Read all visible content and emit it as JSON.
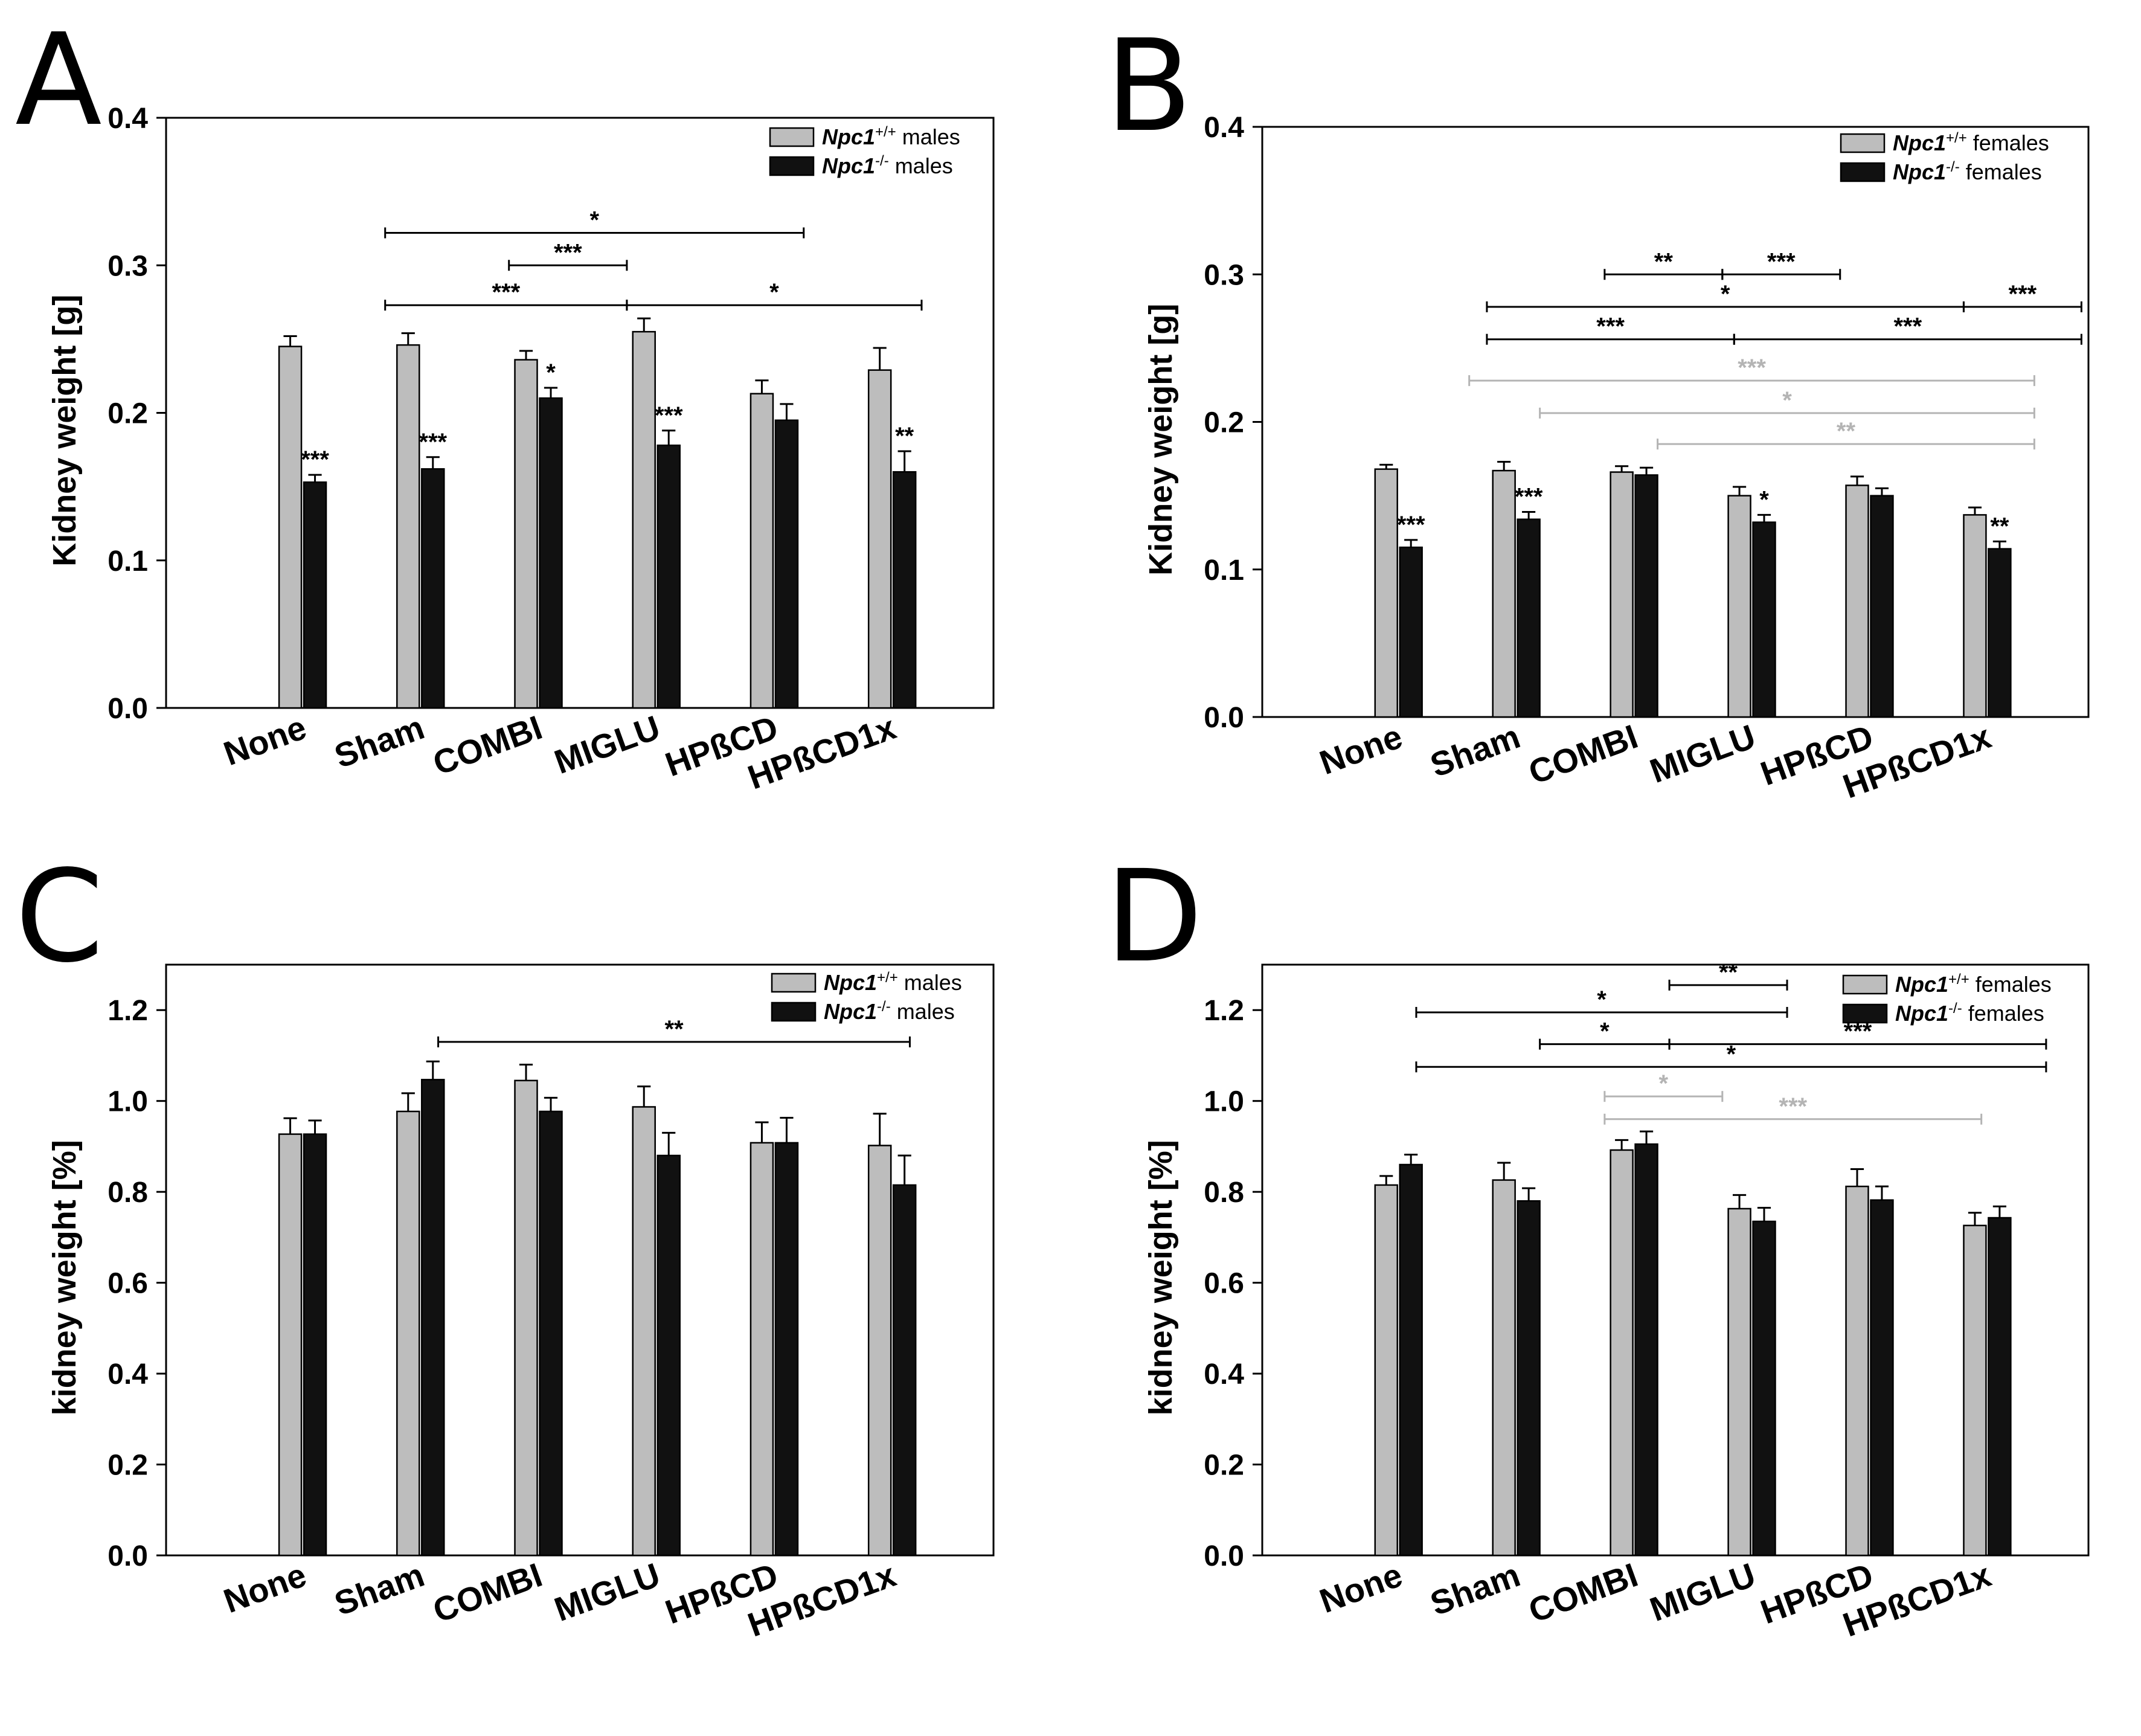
{
  "colors": {
    "wildtype": "#bdbdbd",
    "mutant": "#111111",
    "axis": "#000000",
    "grey_bracket": "#b4b4b4"
  },
  "categories": [
    "None",
    "Sham",
    "COMBI",
    "MIGLU",
    "HPßCD",
    "HPßCD1x"
  ],
  "chart_data": [
    {
      "panel": "A",
      "type": "bar",
      "ylabel": "Kidney weight [g]",
      "ylim": [
        0,
        0.4
      ],
      "yticks": [
        "0.0",
        "0.1",
        "0.2",
        "0.3",
        "0.4"
      ],
      "categories": [
        "None",
        "Sham",
        "COMBI",
        "MIGLU",
        "HPßCD",
        "HPßCD1x"
      ],
      "legend": {
        "placement": "top-right",
        "items": [
          {
            "italic": "Npc1",
            "sup": "+/+",
            "rest": " males",
            "series": 0
          },
          {
            "italic": "Npc1",
            "sup": "-/-",
            "rest": "  males",
            "series": 1
          }
        ]
      },
      "series": [
        {
          "values": [
            0.245,
            0.246,
            0.236,
            0.255,
            0.213,
            0.229
          ],
          "errors": [
            0.007,
            0.008,
            0.006,
            0.009,
            0.009,
            0.015
          ]
        },
        {
          "values": [
            0.153,
            0.162,
            0.21,
            0.178,
            0.195,
            0.16
          ],
          "errors": [
            0.005,
            0.008,
            0.007,
            0.01,
            0.011,
            0.014
          ]
        }
      ],
      "bar_marks": [
        {
          "cat": 0,
          "series": 1,
          "text": "***"
        },
        {
          "cat": 1,
          "series": 1,
          "text": "***"
        },
        {
          "cat": 2,
          "series": 1,
          "text": "*"
        },
        {
          "cat": 3,
          "series": 1,
          "text": "***"
        },
        {
          "cat": 5,
          "series": 1,
          "text": "**"
        }
      ],
      "brackets": [
        {
          "from": 0.7,
          "to": 4.25,
          "y": 0.322,
          "text": "*",
          "color": "black"
        },
        {
          "from": 1.75,
          "to": 2.75,
          "y": 0.3,
          "text": "***",
          "color": "black"
        },
        {
          "from": 0.7,
          "to": 2.75,
          "y": 0.273,
          "text": "***",
          "color": "black"
        },
        {
          "from": 2.75,
          "to": 5.25,
          "y": 0.273,
          "text": "*",
          "color": "black"
        }
      ]
    },
    {
      "panel": "B",
      "type": "bar",
      "ylabel": "Kidney weight [g]",
      "ylim": [
        0,
        0.4
      ],
      "yticks": [
        "0.0",
        "0.1",
        "0.2",
        "0.3",
        "0.4"
      ],
      "categories": [
        "None",
        "Sham",
        "COMBI",
        "MIGLU",
        "HPßCD",
        "HPßCD1x"
      ],
      "legend": {
        "placement": "top-right",
        "items": [
          {
            "italic": "Npc1",
            "sup": "+/+",
            "rest": " females",
            "series": 0
          },
          {
            "italic": "Npc1",
            "sup": "-/-",
            "rest": "  females",
            "series": 1
          }
        ]
      },
      "series": [
        {
          "values": [
            0.168,
            0.167,
            0.166,
            0.15,
            0.157,
            0.137
          ],
          "errors": [
            0.003,
            0.006,
            0.004,
            0.006,
            0.006,
            0.005
          ]
        },
        {
          "values": [
            0.115,
            0.134,
            0.164,
            0.132,
            0.15,
            0.114
          ],
          "errors": [
            0.005,
            0.005,
            0.005,
            0.005,
            0.005,
            0.005
          ]
        }
      ],
      "bar_marks": [
        {
          "cat": 0,
          "series": 1,
          "text": "***"
        },
        {
          "cat": 1,
          "series": 1,
          "text": "***"
        },
        {
          "cat": 3,
          "series": 1,
          "text": "*"
        },
        {
          "cat": 5,
          "series": 1,
          "text": "**"
        }
      ],
      "brackets": [
        {
          "from": 1.75,
          "to": 2.75,
          "y": 0.3,
          "text": "**",
          "color": "black"
        },
        {
          "from": 2.75,
          "to": 3.75,
          "y": 0.3,
          "text": "***",
          "color": "black"
        },
        {
          "from": 0.75,
          "to": 4.8,
          "y": 0.278,
          "text": "*",
          "color": "black"
        },
        {
          "from": 4.8,
          "to": 5.8,
          "y": 0.278,
          "text": "***",
          "color": "black"
        },
        {
          "from": 0.75,
          "to": 2.85,
          "y": 0.256,
          "text": "***",
          "color": "black"
        },
        {
          "from": 2.85,
          "to": 5.8,
          "y": 0.256,
          "text": "***",
          "color": "black"
        },
        {
          "from": 0.6,
          "to": 5.4,
          "y": 0.228,
          "text": "***",
          "color": "grey"
        },
        {
          "from": 1.2,
          "to": 5.4,
          "y": 0.206,
          "text": "*",
          "color": "grey"
        },
        {
          "from": 2.2,
          "to": 5.4,
          "y": 0.185,
          "text": "**",
          "color": "grey"
        }
      ]
    },
    {
      "panel": "C",
      "type": "bar",
      "ylabel": "kidney weight [%]",
      "ylim": [
        0,
        1.3
      ],
      "yticks": [
        "0.0",
        "0.2",
        "0.4",
        "0.6",
        "0.8",
        "1.0",
        "1.2"
      ],
      "categories": [
        "None",
        "Sham",
        "COMBI",
        "MIGLU",
        "HPßCD",
        "HPßCD1x"
      ],
      "legend": {
        "placement": "top-right",
        "items": [
          {
            "italic": "Npc1",
            "sup": "+/+",
            "rest": " males",
            "series": 0
          },
          {
            "italic": "Npc1",
            "sup": "-/-",
            "rest": "  males",
            "series": 1
          }
        ]
      },
      "series": [
        {
          "values": [
            0.927,
            0.977,
            1.045,
            0.987,
            0.908,
            0.902
          ],
          "errors": [
            0.035,
            0.04,
            0.035,
            0.045,
            0.045,
            0.07
          ]
        },
        {
          "values": [
            0.927,
            1.047,
            0.977,
            0.88,
            0.908,
            0.815
          ],
          "errors": [
            0.03,
            0.04,
            0.03,
            0.05,
            0.055,
            0.065
          ]
        }
      ],
      "bar_marks": [],
      "brackets": [
        {
          "from": 1.15,
          "to": 5.15,
          "y": 1.13,
          "text": "**",
          "color": "black"
        }
      ]
    },
    {
      "panel": "D",
      "type": "bar",
      "ylabel": "kidney weight [%]",
      "ylim": [
        0,
        1.3
      ],
      "yticks": [
        "0.0",
        "0.2",
        "0.4",
        "0.6",
        "0.8",
        "1.0",
        "1.2"
      ],
      "categories": [
        "None",
        "Sham",
        "COMBI",
        "MIGLU",
        "HPßCD",
        "HPßCD1x"
      ],
      "legend": {
        "placement": "top-right",
        "items": [
          {
            "italic": "Npc1",
            "sup": "+/+",
            "rest": " females",
            "series": 0
          },
          {
            "italic": "Npc1",
            "sup": "-/-",
            "rest": "  females",
            "series": 1
          }
        ]
      },
      "series": [
        {
          "values": [
            0.815,
            0.826,
            0.892,
            0.763,
            0.812,
            0.726
          ],
          "errors": [
            0.02,
            0.038,
            0.022,
            0.03,
            0.038,
            0.028
          ]
        },
        {
          "values": [
            0.86,
            0.78,
            0.905,
            0.735,
            0.782,
            0.743
          ],
          "errors": [
            0.022,
            0.028,
            0.028,
            0.03,
            0.03,
            0.025
          ]
        }
      ],
      "bar_marks": [],
      "brackets": [
        {
          "from": 2.3,
          "to": 3.3,
          "y": 1.255,
          "text": "**",
          "color": "black"
        },
        {
          "from": 0.15,
          "to": 3.3,
          "y": 1.195,
          "text": "*",
          "color": "black"
        },
        {
          "from": 1.2,
          "to": 2.3,
          "y": 1.125,
          "text": "*",
          "color": "black"
        },
        {
          "from": 2.3,
          "to": 5.5,
          "y": 1.125,
          "text": "***",
          "color": "black"
        },
        {
          "from": 0.15,
          "to": 5.5,
          "y": 1.075,
          "text": "*",
          "color": "black"
        },
        {
          "from": 1.75,
          "to": 2.75,
          "y": 1.01,
          "text": "*",
          "color": "grey"
        },
        {
          "from": 1.75,
          "to": 4.95,
          "y": 0.96,
          "text": "***",
          "color": "grey"
        }
      ]
    }
  ]
}
